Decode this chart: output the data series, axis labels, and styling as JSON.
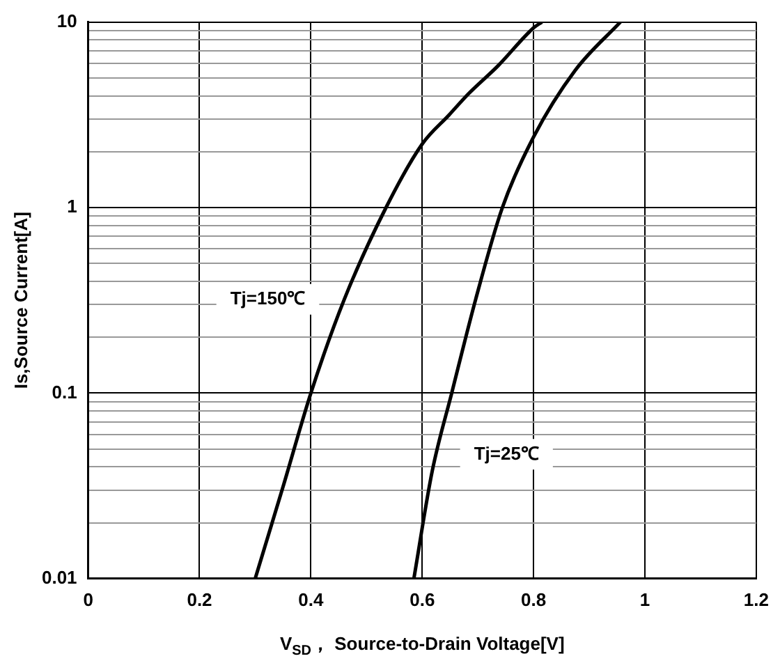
{
  "chart_data": {
    "type": "line",
    "xlabel": "V$_{SD}$， Source-to-Drain Voltage[V]",
    "ylabel": "Is,Source Current[A]",
    "log": "y",
    "grid": true,
    "marker": "none",
    "line_style": "solid",
    "xlim": [
      0,
      1.2
    ],
    "xticks": [
      0,
      0.2,
      0.4,
      0.6,
      0.8,
      1,
      1.2
    ],
    "ylim": [
      0.01,
      10
    ],
    "yticks": [
      0.01,
      {
        "value": 0.02,
        "label": null
      },
      {
        "value": 0.03,
        "label": null
      },
      {
        "value": 0.04,
        "label": null
      },
      {
        "value": 0.05,
        "label": null
      },
      {
        "value": 0.06,
        "label": null
      },
      {
        "value": 0.07,
        "label": null
      },
      {
        "value": 0.08,
        "label": null
      },
      {
        "value": 0.09,
        "label": null
      },
      0.1,
      {
        "value": 0.2,
        "label": null
      },
      {
        "value": 0.3,
        "label": null
      },
      {
        "value": 0.4,
        "label": null
      },
      {
        "value": 0.5,
        "label": null
      },
      {
        "value": 0.6,
        "label": null
      },
      {
        "value": 0.7,
        "label": null
      },
      {
        "value": 0.8,
        "label": null
      },
      {
        "value": 0.9,
        "label": null
      },
      1,
      {
        "value": 2,
        "label": null
      },
      {
        "value": 3,
        "label": null
      },
      {
        "value": 4,
        "label": null
      },
      {
        "value": 5,
        "label": null
      },
      {
        "value": 6,
        "label": null
      },
      {
        "value": 7,
        "label": null
      },
      {
        "value": 8,
        "label": null
      },
      {
        "value": 9,
        "label": null
      },
      10
    ],
    "series": [
      {
        "name": "Tj=150℃",
        "color": "#000000",
        "x": [
          0.3,
          0.351,
          0.4,
          0.46,
          0.535,
          0.6,
          0.648,
          0.683,
          0.736,
          0.8,
          0.815
        ],
        "values": [
          0.01,
          0.032,
          0.1,
          0.32,
          1,
          2.2,
          3.15,
          4.1,
          5.8,
          9.3,
          10
        ]
      },
      {
        "name": "Tj=25℃",
        "color": "#000000",
        "x": [
          0.585,
          0.618,
          0.653,
          0.696,
          0.744,
          0.8,
          0.875,
          0.956
        ],
        "values": [
          0.01,
          0.038,
          0.1,
          0.32,
          1,
          2.4,
          5.5,
          10
        ]
      }
    ]
  }
}
